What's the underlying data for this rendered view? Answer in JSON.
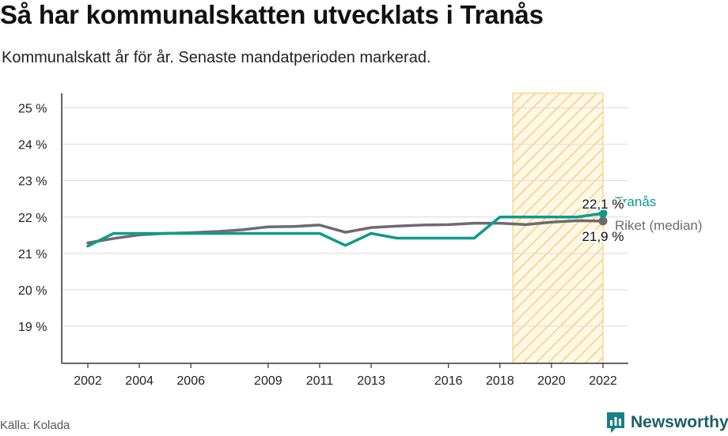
{
  "title": "Så har kommunalskatten utvecklats i Tranås",
  "subtitle": "Kommunalskatt år för år. Senaste mandatperioden markerad.",
  "source": "Källa: Kolada",
  "brand": "Newsworthy",
  "chart_data": {
    "type": "line",
    "title": "Så har kommunalskatten utvecklats i Tranås",
    "subtitle": "Kommunalskatt år för år. Senaste mandatperioden markerad.",
    "ylim": [
      18,
      25.4
    ],
    "yticks": [
      19,
      20,
      21,
      22,
      23,
      24,
      25
    ],
    "ytick_labels": [
      "19 %",
      "20 %",
      "21 %",
      "22 %",
      "23 %",
      "24 %",
      "25 %"
    ],
    "xlim": [
      2001,
      2023
    ],
    "xticks": [
      2002,
      2004,
      2006,
      2009,
      2011,
      2013,
      2016,
      2018,
      2020,
      2022
    ],
    "xtick_labels": [
      "2002",
      "2004",
      "2006",
      "2009",
      "2011",
      "2013",
      "2016",
      "2018",
      "2020",
      "2022"
    ],
    "highlight_period": [
      2018.5,
      2022
    ],
    "grid": true,
    "series": [
      {
        "name": "Riket (median)",
        "color": "#6d6b70",
        "x": [
          2002,
          2003,
          2004,
          2005,
          2006,
          2007,
          2008,
          2009,
          2010,
          2011,
          2012,
          2013,
          2014,
          2015,
          2016,
          2017,
          2018,
          2019,
          2020,
          2021,
          2022
        ],
        "values": [
          21.29,
          21.41,
          21.51,
          21.55,
          21.57,
          21.6,
          21.65,
          21.73,
          21.74,
          21.78,
          21.58,
          21.71,
          21.75,
          21.78,
          21.79,
          21.83,
          21.83,
          21.79,
          21.86,
          21.9,
          21.89
        ],
        "end_label": "21,9 %"
      },
      {
        "name": "Tranås",
        "color": "#0f9a8e",
        "x": [
          2002,
          2003,
          2004,
          2005,
          2006,
          2007,
          2008,
          2009,
          2010,
          2011,
          2012,
          2013,
          2014,
          2015,
          2016,
          2017,
          2018,
          2019,
          2020,
          2021,
          2022
        ],
        "values": [
          21.2,
          21.55,
          21.55,
          21.55,
          21.55,
          21.55,
          21.55,
          21.55,
          21.55,
          21.55,
          21.22,
          21.55,
          21.42,
          21.42,
          21.42,
          21.42,
          22.0,
          22.0,
          22.0,
          22.0,
          22.1
        ],
        "end_label": "22,1 %"
      }
    ]
  }
}
